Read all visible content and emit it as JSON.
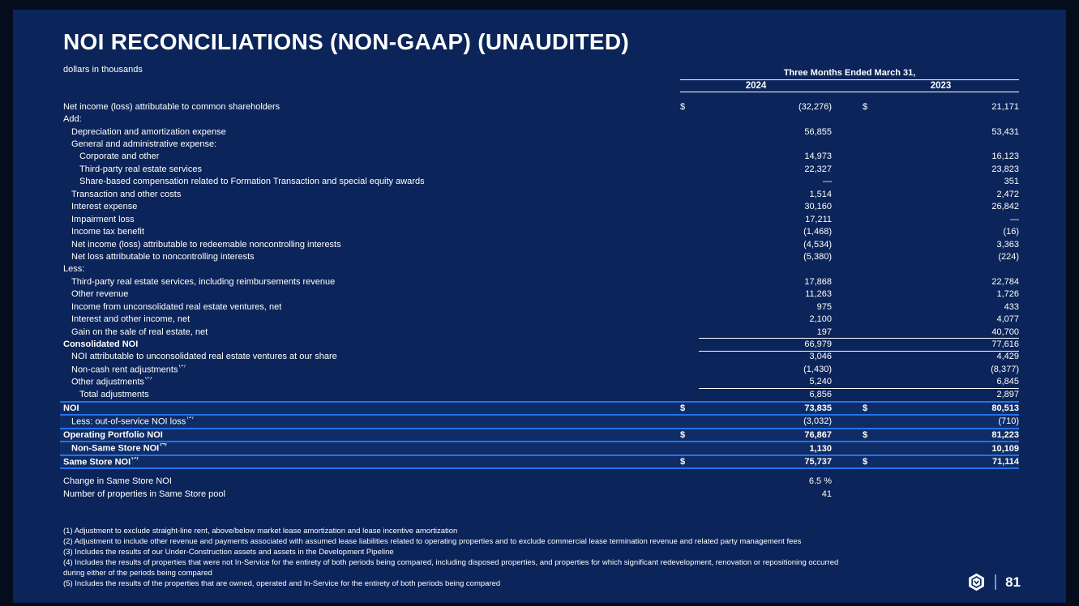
{
  "slide": {
    "title": "NOI RECONCILIATIONS (NON-GAAP) (UNAUDITED)",
    "subtitle": "dollars in thousands",
    "page_number": "81"
  },
  "colors": {
    "frame_background": "#050d1d",
    "slide_background": "#0b2459",
    "band_background": "#0f2c66",
    "accent_line_blue": "#2273e8",
    "text": "#ffffff"
  },
  "table": {
    "period_header": "Three Months Ended March 31,",
    "columns": [
      "2024",
      "2023"
    ],
    "rows": [
      {
        "label": "Net income (loss) attributable to common shareholders",
        "ind": 0,
        "d": true,
        "v24": "(32,276)",
        "v23": "21,171"
      },
      {
        "label": "Add:",
        "ind": 0,
        "v24": "",
        "v23": ""
      },
      {
        "label": "Depreciation and amortization expense",
        "ind": 1,
        "v24": "56,855",
        "v23": "53,431"
      },
      {
        "label": "General and administrative expense:",
        "ind": 1,
        "v24": "",
        "v23": ""
      },
      {
        "label": "Corporate and other",
        "ind": 2,
        "v24": "14,973",
        "v23": "16,123"
      },
      {
        "label": "Third-party real estate services",
        "ind": 2,
        "v24": "22,327",
        "v23": "23,823"
      },
      {
        "label": "Share-based compensation related to Formation Transaction and special equity awards",
        "ind": 2,
        "v24": "—",
        "v23": "351"
      },
      {
        "label": "Transaction and other costs",
        "ind": 1,
        "v24": "1,514",
        "v23": "2,472"
      },
      {
        "label": "Interest expense",
        "ind": 1,
        "v24": "30,160",
        "v23": "26,842"
      },
      {
        "label": "Impairment loss",
        "ind": 1,
        "v24": "17,211",
        "v23": "—"
      },
      {
        "label": "Income tax benefit",
        "ind": 1,
        "v24": "(1,468)",
        "v23": "(16)"
      },
      {
        "label": "Net income (loss) attributable to redeemable noncontrolling interests",
        "ind": 1,
        "v24": "(4,534)",
        "v23": "3,363"
      },
      {
        "label": "Net loss attributable to noncontrolling interests",
        "ind": 1,
        "v24": "(5,380)",
        "v23": "(224)"
      },
      {
        "label": "Less:",
        "ind": 0,
        "v24": "",
        "v23": ""
      },
      {
        "label": "Third-party real estate services, including reimbursements revenue",
        "ind": 1,
        "v24": "17,868",
        "v23": "22,784"
      },
      {
        "label": "Other revenue",
        "ind": 1,
        "v24": "11,263",
        "v23": "1,726"
      },
      {
        "label": "Income from unconsolidated real estate ventures, net",
        "ind": 1,
        "v24": "975",
        "v23": "433"
      },
      {
        "label": "Interest and other income, net",
        "ind": 1,
        "v24": "2,100",
        "v23": "4,077"
      },
      {
        "label": "Gain on the sale of real estate, net",
        "ind": 1,
        "rule": true,
        "v24": "197",
        "v23": "40,700"
      },
      {
        "label": "Consolidated NOI",
        "ind": 0,
        "lb": true,
        "rule": true,
        "v24": "66,979",
        "v23": "77,616"
      },
      {
        "label": "NOI attributable to unconsolidated real estate ventures at our share",
        "ind": 1,
        "v24": "3,046",
        "v23": "4,429"
      },
      {
        "label": "Non-cash rent adjustments",
        "sup": "(1)",
        "ind": 1,
        "v24": "(1,430)",
        "v23": "(8,377)"
      },
      {
        "label": "Other adjustments",
        "sup": "(2)",
        "ind": 1,
        "rule": true,
        "v24": "5,240",
        "v23": "6,845"
      },
      {
        "label": "Total adjustments",
        "ind": 2,
        "v24": "6,856",
        "v23": "2,897"
      },
      {
        "label": "NOI",
        "ind": 0,
        "lb": true,
        "vb": true,
        "d": true,
        "band": true,
        "v24": "73,835",
        "v23": "80,513"
      },
      {
        "label": "Less: out-of-service NOI loss",
        "sup": "(3)",
        "ind": 1,
        "band": true,
        "v24": "(3,032)",
        "v23": "(710)"
      },
      {
        "label": "Operating Portfolio NOI",
        "ind": 0,
        "lb": true,
        "vb": true,
        "d": true,
        "band": true,
        "v24": "76,867",
        "v23": "81,223"
      },
      {
        "label": "Non-Same Store NOI",
        "sup": "(4)",
        "ind": 1,
        "lb": true,
        "vb": true,
        "band": true,
        "v24": "1,130",
        "v23": "10,109"
      },
      {
        "label": "Same Store NOI",
        "sup": "(5)",
        "ind": 0,
        "lb": true,
        "vb": true,
        "d": true,
        "band": true,
        "v24": "75,737",
        "v23": "71,114"
      }
    ]
  },
  "metrics": [
    {
      "label": "Change in Same Store NOI",
      "value": "6.5 %"
    },
    {
      "label": "Number of properties in Same Store pool",
      "value": "41"
    }
  ],
  "footnotes": [
    "(1) Adjustment to exclude straight-line rent, above/below market lease amortization and lease incentive amortization",
    "(2) Adjustment to include other revenue and payments associated with assumed lease liabilities related to operating properties and to exclude commercial lease termination revenue and related party management fees",
    "(3) Includes the results of our Under-Construction assets and assets in the Development Pipeline",
    "(4) Includes the results of properties that were not In-Service for the entirety of both periods being compared, including disposed properties, and properties for which significant redevelopment, renovation or repositioning occurred\nduring either of the periods being compared",
    "(5) Includes the results of the properties that are owned, operated and In-Service for the entirety of both periods being compared"
  ]
}
